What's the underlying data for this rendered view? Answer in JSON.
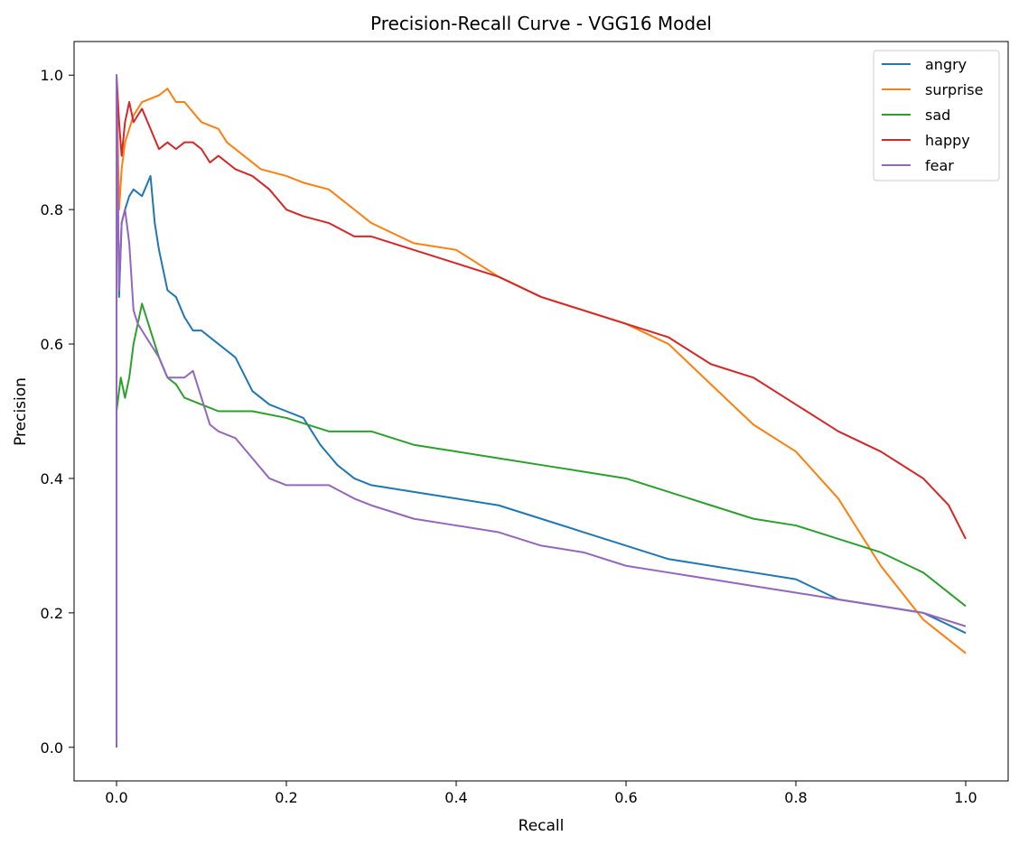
{
  "chart_data": {
    "type": "line",
    "title": "Precision-Recall Curve - VGG16 Model",
    "xlabel": "Recall",
    "ylabel": "Precision",
    "xlim": [
      -0.05,
      1.05
    ],
    "ylim": [
      -0.05,
      1.05
    ],
    "xticks": [
      0.0,
      0.2,
      0.4,
      0.6,
      0.8,
      1.0
    ],
    "xtick_labels": [
      "0.0",
      "0.2",
      "0.4",
      "0.6",
      "0.8",
      "1.0"
    ],
    "yticks": [
      0.0,
      0.2,
      0.4,
      0.6,
      0.8,
      1.0
    ],
    "ytick_labels": [
      "0.0",
      "0.2",
      "0.4",
      "0.6",
      "0.8",
      "1.0"
    ],
    "grid": false,
    "legend_position": "top-right",
    "series": [
      {
        "name": "angry",
        "color": "#1f77b4",
        "points": [
          [
            0.0,
            0.0
          ],
          [
            0.0,
            1.0
          ],
          [
            0.003,
            0.67
          ],
          [
            0.006,
            0.78
          ],
          [
            0.01,
            0.8
          ],
          [
            0.015,
            0.82
          ],
          [
            0.02,
            0.83
          ],
          [
            0.03,
            0.82
          ],
          [
            0.04,
            0.85
          ],
          [
            0.045,
            0.78
          ],
          [
            0.05,
            0.74
          ],
          [
            0.055,
            0.71
          ],
          [
            0.06,
            0.68
          ],
          [
            0.07,
            0.67
          ],
          [
            0.08,
            0.64
          ],
          [
            0.09,
            0.62
          ],
          [
            0.1,
            0.62
          ],
          [
            0.12,
            0.6
          ],
          [
            0.14,
            0.58
          ],
          [
            0.16,
            0.53
          ],
          [
            0.18,
            0.51
          ],
          [
            0.2,
            0.5
          ],
          [
            0.22,
            0.49
          ],
          [
            0.24,
            0.45
          ],
          [
            0.26,
            0.42
          ],
          [
            0.28,
            0.4
          ],
          [
            0.3,
            0.39
          ],
          [
            0.35,
            0.38
          ],
          [
            0.4,
            0.37
          ],
          [
            0.45,
            0.36
          ],
          [
            0.5,
            0.34
          ],
          [
            0.55,
            0.32
          ],
          [
            0.6,
            0.3
          ],
          [
            0.65,
            0.28
          ],
          [
            0.7,
            0.27
          ],
          [
            0.75,
            0.26
          ],
          [
            0.8,
            0.25
          ],
          [
            0.85,
            0.22
          ],
          [
            0.9,
            0.21
          ],
          [
            0.95,
            0.2
          ],
          [
            1.0,
            0.17
          ]
        ]
      },
      {
        "name": "surprise",
        "color": "#ff7f0e",
        "points": [
          [
            0.0,
            0.0
          ],
          [
            0.0,
            1.0
          ],
          [
            0.003,
            0.8
          ],
          [
            0.006,
            0.86
          ],
          [
            0.01,
            0.9
          ],
          [
            0.02,
            0.94
          ],
          [
            0.03,
            0.96
          ],
          [
            0.05,
            0.97
          ],
          [
            0.06,
            0.98
          ],
          [
            0.07,
            0.96
          ],
          [
            0.08,
            0.96
          ],
          [
            0.1,
            0.93
          ],
          [
            0.12,
            0.92
          ],
          [
            0.13,
            0.9
          ],
          [
            0.15,
            0.88
          ],
          [
            0.17,
            0.86
          ],
          [
            0.2,
            0.85
          ],
          [
            0.22,
            0.84
          ],
          [
            0.25,
            0.83
          ],
          [
            0.28,
            0.8
          ],
          [
            0.3,
            0.78
          ],
          [
            0.35,
            0.75
          ],
          [
            0.4,
            0.74
          ],
          [
            0.45,
            0.7
          ],
          [
            0.5,
            0.67
          ],
          [
            0.55,
            0.65
          ],
          [
            0.6,
            0.63
          ],
          [
            0.65,
            0.6
          ],
          [
            0.7,
            0.54
          ],
          [
            0.75,
            0.48
          ],
          [
            0.8,
            0.44
          ],
          [
            0.85,
            0.37
          ],
          [
            0.9,
            0.27
          ],
          [
            0.95,
            0.19
          ],
          [
            1.0,
            0.14
          ]
        ]
      },
      {
        "name": "sad",
        "color": "#2ca02c",
        "points": [
          [
            0.0,
            0.0
          ],
          [
            0.0,
            0.5
          ],
          [
            0.005,
            0.55
          ],
          [
            0.01,
            0.52
          ],
          [
            0.015,
            0.55
          ],
          [
            0.02,
            0.6
          ],
          [
            0.025,
            0.63
          ],
          [
            0.03,
            0.66
          ],
          [
            0.04,
            0.62
          ],
          [
            0.05,
            0.58
          ],
          [
            0.06,
            0.55
          ],
          [
            0.07,
            0.54
          ],
          [
            0.08,
            0.52
          ],
          [
            0.1,
            0.51
          ],
          [
            0.12,
            0.5
          ],
          [
            0.14,
            0.5
          ],
          [
            0.16,
            0.5
          ],
          [
            0.2,
            0.49
          ],
          [
            0.25,
            0.47
          ],
          [
            0.3,
            0.47
          ],
          [
            0.35,
            0.45
          ],
          [
            0.4,
            0.44
          ],
          [
            0.45,
            0.43
          ],
          [
            0.5,
            0.42
          ],
          [
            0.55,
            0.41
          ],
          [
            0.6,
            0.4
          ],
          [
            0.65,
            0.38
          ],
          [
            0.7,
            0.36
          ],
          [
            0.75,
            0.34
          ],
          [
            0.8,
            0.33
          ],
          [
            0.85,
            0.31
          ],
          [
            0.9,
            0.29
          ],
          [
            0.95,
            0.26
          ],
          [
            1.0,
            0.21
          ]
        ]
      },
      {
        "name": "happy",
        "color": "#d62728",
        "points": [
          [
            0.0,
            0.0
          ],
          [
            0.0,
            1.0
          ],
          [
            0.003,
            0.93
          ],
          [
            0.006,
            0.88
          ],
          [
            0.01,
            0.93
          ],
          [
            0.015,
            0.96
          ],
          [
            0.02,
            0.93
          ],
          [
            0.03,
            0.95
          ],
          [
            0.04,
            0.92
          ],
          [
            0.05,
            0.89
          ],
          [
            0.06,
            0.9
          ],
          [
            0.07,
            0.89
          ],
          [
            0.08,
            0.9
          ],
          [
            0.09,
            0.9
          ],
          [
            0.1,
            0.89
          ],
          [
            0.11,
            0.87
          ],
          [
            0.12,
            0.88
          ],
          [
            0.14,
            0.86
          ],
          [
            0.16,
            0.85
          ],
          [
            0.18,
            0.83
          ],
          [
            0.2,
            0.8
          ],
          [
            0.22,
            0.79
          ],
          [
            0.25,
            0.78
          ],
          [
            0.28,
            0.76
          ],
          [
            0.3,
            0.76
          ],
          [
            0.35,
            0.74
          ],
          [
            0.4,
            0.72
          ],
          [
            0.45,
            0.7
          ],
          [
            0.5,
            0.67
          ],
          [
            0.55,
            0.65
          ],
          [
            0.6,
            0.63
          ],
          [
            0.65,
            0.61
          ],
          [
            0.7,
            0.57
          ],
          [
            0.75,
            0.55
          ],
          [
            0.8,
            0.51
          ],
          [
            0.85,
            0.47
          ],
          [
            0.9,
            0.44
          ],
          [
            0.95,
            0.4
          ],
          [
            0.98,
            0.36
          ],
          [
            1.0,
            0.31
          ]
        ]
      },
      {
        "name": "fear",
        "color": "#9467bd",
        "points": [
          [
            0.0,
            0.0
          ],
          [
            0.0,
            1.0
          ],
          [
            0.003,
            0.68
          ],
          [
            0.006,
            0.78
          ],
          [
            0.01,
            0.8
          ],
          [
            0.015,
            0.75
          ],
          [
            0.02,
            0.65
          ],
          [
            0.025,
            0.63
          ],
          [
            0.03,
            0.62
          ],
          [
            0.04,
            0.6
          ],
          [
            0.05,
            0.58
          ],
          [
            0.06,
            0.55
          ],
          [
            0.08,
            0.55
          ],
          [
            0.09,
            0.56
          ],
          [
            0.1,
            0.52
          ],
          [
            0.11,
            0.48
          ],
          [
            0.12,
            0.47
          ],
          [
            0.14,
            0.46
          ],
          [
            0.16,
            0.43
          ],
          [
            0.18,
            0.4
          ],
          [
            0.2,
            0.39
          ],
          [
            0.25,
            0.39
          ],
          [
            0.28,
            0.37
          ],
          [
            0.3,
            0.36
          ],
          [
            0.35,
            0.34
          ],
          [
            0.4,
            0.33
          ],
          [
            0.45,
            0.32
          ],
          [
            0.5,
            0.3
          ],
          [
            0.55,
            0.29
          ],
          [
            0.6,
            0.27
          ],
          [
            0.65,
            0.26
          ],
          [
            0.7,
            0.25
          ],
          [
            0.75,
            0.24
          ],
          [
            0.8,
            0.23
          ],
          [
            0.85,
            0.22
          ],
          [
            0.9,
            0.21
          ],
          [
            0.95,
            0.2
          ],
          [
            1.0,
            0.18
          ]
        ]
      }
    ]
  }
}
